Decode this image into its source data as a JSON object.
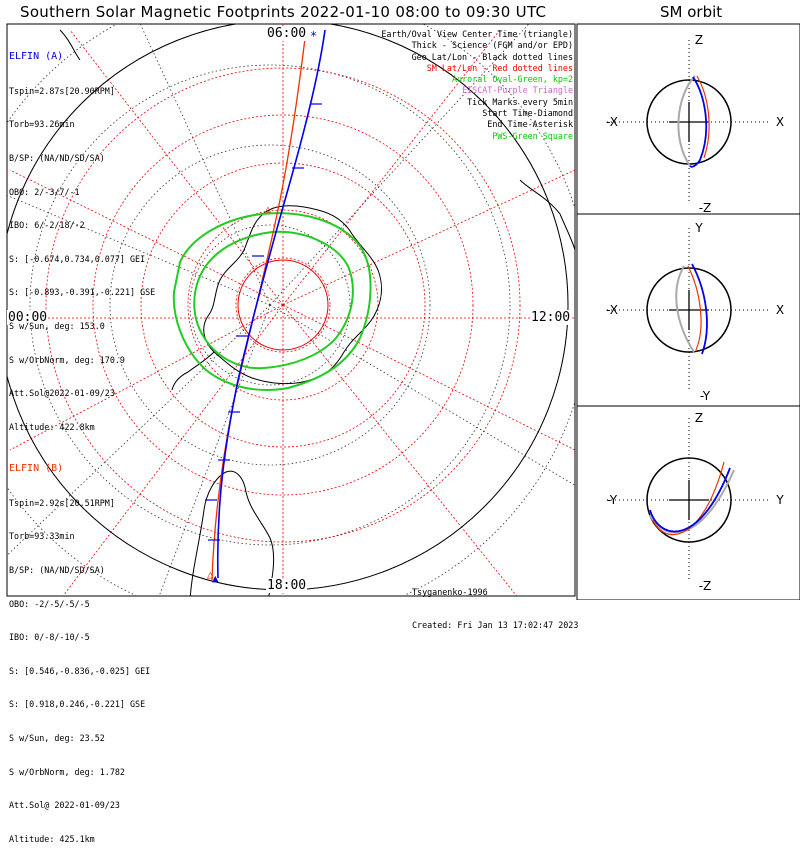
{
  "title": "Southern Solar Magnetic Footprints 2022-01-10 08:00 to 09:30 UTC",
  "sm_title": "SM orbit",
  "mlt_labels": {
    "top": "06:00",
    "left": "00:00",
    "right": "12:00",
    "bottom": "18:00"
  },
  "elfin_a": {
    "name": "ELFIN (A)",
    "color": "#0000ee",
    "lines": [
      "Tspin=2.87s[20.90RPM]",
      "Torb=93.26min",
      "B/SP: (NA/ND/SD/SA)",
      "OBO: 2/-3/7/-1",
      "IBO: 6/-2/18/-2",
      "S: [-0.674,0.734,0.077] GEI",
      "S: [-0.893,-0.391,-0.221] GSE",
      "S w/Sun, deg: 153.0",
      "S w/OrbNorm, deg: 170.9",
      "Att.Sol@2022-01-09/23",
      "Altitude: 422.8km"
    ]
  },
  "elfin_b": {
    "name": "ELFIN (B)",
    "color": "#ee3300",
    "lines": [
      "Tspin=2.92s[20.51RPM]",
      "Torb=93.33min",
      "B/SP: (NA/ND/SD/SA)",
      "OBO: -2/-5/-5/-5",
      "IBO: 0/-8/-10/-5",
      "S: [0.546,-0.836,-0.025] GEI",
      "S: [0.918,0.246,-0.221] GSE",
      "S w/Sun, deg: 23.52",
      "S w/OrbNorm, deg: 1.782",
      "Att.Sol@ 2022-01-09/23",
      "Altitude: 425.1km"
    ]
  },
  "legend": [
    {
      "text": "Earth/Oval View Center Time (triangle)",
      "color": "#000000"
    },
    {
      "text": "Thick - Science (FGM and/or EPD)",
      "color": "#000000"
    },
    {
      "text": "Geo Lat/Lon - Black dotted lines",
      "color": "#000000"
    },
    {
      "text": "SM Lat/Lon - Red dotted lines",
      "color": "#ee0000"
    },
    {
      "text": "Auroral Oval-Green, kp=2",
      "color": "#00cc00"
    },
    {
      "text": "EISCAT-Purple Triangle",
      "color": "#cc66cc"
    },
    {
      "text": "Tick Marks every 5min",
      "color": "#000000"
    },
    {
      "text": "Start Time-Diamond",
      "color": "#000000"
    },
    {
      "text": "End Time-Asterisk",
      "color": "#000000"
    },
    {
      "text": "PWS-Green Square",
      "color": "#00cc00"
    }
  ],
  "credits": [
    "Tsyganenko-1996",
    "Created: Fri Jan 13 17:02:47 2023"
  ],
  "sm_panels": [
    {
      "left_label": "-X",
      "right_label": "X",
      "top_label": "Z",
      "bottom_label": "-Z"
    },
    {
      "left_label": "-X",
      "right_label": "X",
      "top_label": "Y",
      "bottom_label": "-Y"
    },
    {
      "left_label": "-Y",
      "right_label": "Y",
      "top_label": "Z",
      "bottom_label": "-Z"
    }
  ],
  "chart_data": {
    "type": "map",
    "title": "Southern Solar Magnetic Footprints 2022-01-10 08:00 to 09:30 UTC",
    "mlt_ticks": [
      "06:00",
      "00:00",
      "12:00",
      "18:00"
    ],
    "colors": {
      "elfin_a": "#0000ee",
      "elfin_b": "#ee3300",
      "auroral_oval": "#00cc00",
      "sm_grid": "#ee0000",
      "geo_grid": "#000000"
    }
  }
}
